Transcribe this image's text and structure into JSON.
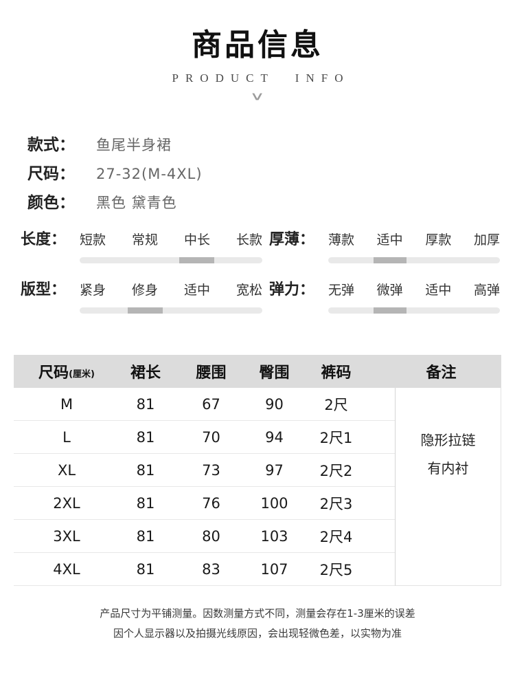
{
  "header": {
    "title": "商品信息",
    "subtitle": "PRODUCT INFO"
  },
  "icons": {
    "chevron_down_icon": "∨"
  },
  "basic_info": [
    {
      "label": "款式：",
      "value": "鱼尾半身裙"
    },
    {
      "label": "尺码：",
      "value": "27-32(M-4XL)"
    },
    {
      "label": "颜色：",
      "value": "黑色 黛青色"
    }
  ],
  "attributes": [
    {
      "label": "长度：",
      "options": [
        "短款",
        "常规",
        "中长",
        "长款"
      ],
      "selected_index": 2,
      "selected_label": "中长"
    },
    {
      "label": "厚薄：",
      "options": [
        "薄款",
        "适中",
        "厚款",
        "加厚"
      ],
      "selected_index": 1,
      "selected_label": "适中"
    },
    {
      "label": "版型：",
      "options": [
        "紧身",
        "修身",
        "适中",
        "宽松"
      ],
      "selected_index": 1,
      "selected_label": "修身"
    },
    {
      "label": "弹力：",
      "options": [
        "无弹",
        "微弹",
        "适中",
        "高弹"
      ],
      "selected_index": 1,
      "selected_label": "微弹"
    }
  ],
  "size_table": {
    "columns": [
      "尺码",
      "裙长",
      "腰围",
      "臀围",
      "裤码",
      "备注"
    ],
    "size_unit": "(厘米)",
    "rows": [
      [
        "M",
        "81",
        "67",
        "90",
        "2尺"
      ],
      [
        "L",
        "81",
        "70",
        "94",
        "2尺1"
      ],
      [
        "XL",
        "81",
        "73",
        "97",
        "2尺2"
      ],
      [
        "2XL",
        "81",
        "76",
        "100",
        "2尺3"
      ],
      [
        "3XL",
        "81",
        "80",
        "103",
        "2尺4"
      ],
      [
        "4XL",
        "81",
        "83",
        "107",
        "2尺5"
      ]
    ],
    "remark_lines": [
      "隐形拉链",
      "有内衬"
    ]
  },
  "footer": {
    "lines": [
      "产品尺寸为平铺测量。因数测量方式不同，测量会存在1-3厘米的误差",
      "因个人显示器以及拍摄光线原因，会出现轻微色差，以实物为准"
    ]
  },
  "colors": {
    "slider_track": "#e9e9e9",
    "slider_segment": "#b5b5b5",
    "table_header_bg": "#dcdcdc",
    "row_divider": "#e7e7e7"
  }
}
